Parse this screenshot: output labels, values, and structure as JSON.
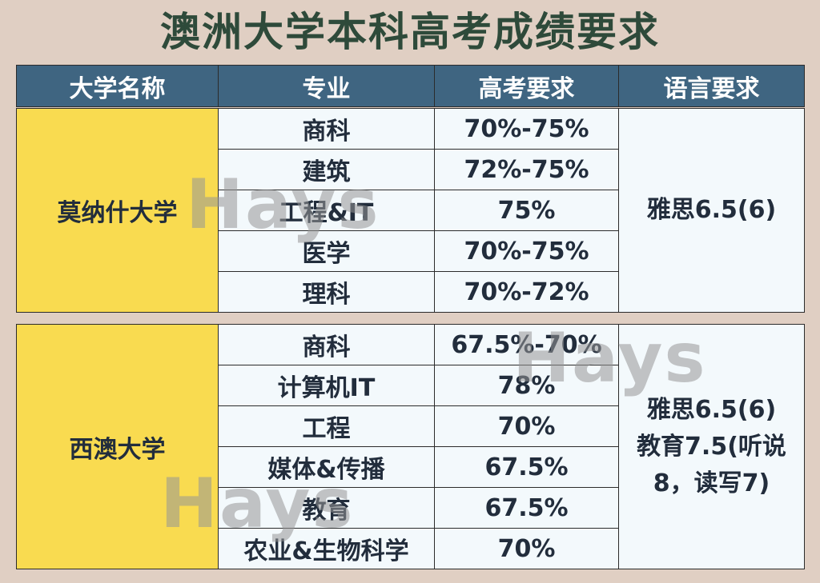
{
  "title": "澳洲大学本科高考成绩要求",
  "headers": [
    "大学名称",
    "专业",
    "高考要求",
    "语言要求"
  ],
  "watermark": "Hays",
  "universities": [
    {
      "name": "莫纳什大学",
      "language": [
        "雅思6.5(6)"
      ],
      "rows": [
        {
          "major": "商科",
          "req": "70%-75%"
        },
        {
          "major": "建筑",
          "req": "72%-75%"
        },
        {
          "major": "工程&IT",
          "req": "75%"
        },
        {
          "major": "医学",
          "req": "70%-75%"
        },
        {
          "major": "理科",
          "req": "70%-72%"
        }
      ]
    },
    {
      "name": "西澳大学",
      "language": [
        "雅思6.5(6)",
        "教育7.5(听说",
        "8，读写7)"
      ],
      "rows": [
        {
          "major": "商科",
          "req": "67.5%-70%"
        },
        {
          "major": "计算机IT",
          "req": "78%"
        },
        {
          "major": "工程",
          "req": "70%"
        },
        {
          "major": "媒体&传播",
          "req": "67.5%"
        },
        {
          "major": "教育",
          "req": "67.5%"
        },
        {
          "major": "农业&生物科学",
          "req": "70%"
        }
      ]
    }
  ]
}
